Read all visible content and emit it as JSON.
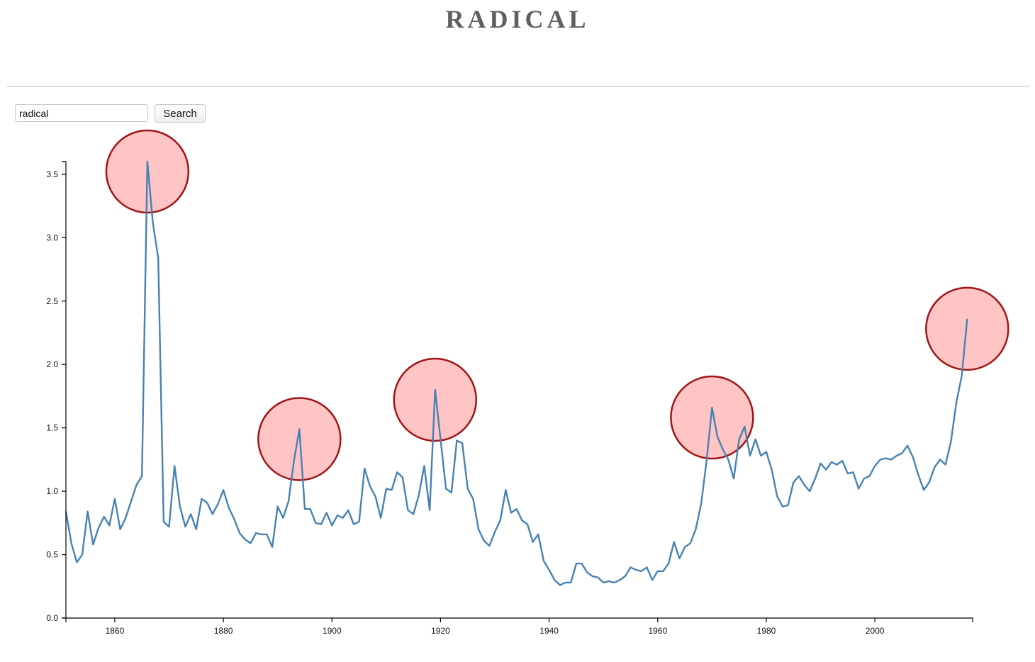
{
  "page": {
    "title": "RADICAL"
  },
  "search": {
    "value": "radical",
    "button_label": "Search"
  },
  "chart_data": {
    "type": "line",
    "title": "RADICAL",
    "xlabel": "",
    "ylabel": "",
    "xlim": [
      1851,
      2018
    ],
    "ylim": [
      0,
      3.6
    ],
    "xticks": [
      1860,
      1880,
      1900,
      1920,
      1940,
      1960,
      1980,
      2000
    ],
    "yticks": [
      0.0,
      0.5,
      1.0,
      1.5,
      2.0,
      2.5,
      3.0,
      3.5
    ],
    "grid": false,
    "legend": "none",
    "colors": {
      "line": "#4682b4",
      "highlight_fill": "#ffc4c4",
      "highlight_stroke": "#a01515",
      "axis": "#000000"
    },
    "series": [
      {
        "x": [
          1851,
          1852,
          1853,
          1854,
          1855,
          1856,
          1857,
          1858,
          1859,
          1860,
          1861,
          1862,
          1863,
          1864,
          1865,
          1866,
          1867,
          1868,
          1869,
          1870,
          1871,
          1872,
          1873,
          1874,
          1875,
          1876,
          1877,
          1878,
          1879,
          1880,
          1881,
          1882,
          1883,
          1884,
          1885,
          1886,
          1887,
          1888,
          1889,
          1890,
          1891,
          1892,
          1893,
          1894,
          1895,
          1896,
          1897,
          1898,
          1899,
          1900,
          1901,
          1902,
          1903,
          1904,
          1905,
          1906,
          1907,
          1908,
          1909,
          1910,
          1911,
          1912,
          1913,
          1914,
          1915,
          1916,
          1917,
          1918,
          1919,
          1920,
          1921,
          1922,
          1923,
          1924,
          1925,
          1926,
          1927,
          1928,
          1929,
          1930,
          1931,
          1932,
          1933,
          1934,
          1935,
          1936,
          1937,
          1938,
          1939,
          1940,
          1941,
          1942,
          1943,
          1944,
          1945,
          1946,
          1947,
          1948,
          1949,
          1950,
          1951,
          1952,
          1953,
          1954,
          1955,
          1956,
          1957,
          1958,
          1959,
          1960,
          1961,
          1962,
          1963,
          1964,
          1965,
          1966,
          1967,
          1968,
          1969,
          1970,
          1971,
          1972,
          1973,
          1974,
          1975,
          1976,
          1977,
          1978,
          1979,
          1980,
          1981,
          1982,
          1983,
          1984,
          1985,
          1986,
          1987,
          1988,
          1989,
          1990,
          1991,
          1992,
          1993,
          1994,
          1995,
          1996,
          1997,
          1998,
          1999,
          2000,
          2001,
          2002,
          2003,
          2004,
          2005,
          2006,
          2007,
          2008,
          2009,
          2010,
          2011,
          2012,
          2013,
          2014,
          2015,
          2016,
          2017
        ],
        "values": [
          0.84,
          0.59,
          0.44,
          0.5,
          0.84,
          0.58,
          0.71,
          0.8,
          0.73,
          0.94,
          0.7,
          0.79,
          0.92,
          1.05,
          1.12,
          3.6,
          3.12,
          2.84,
          0.76,
          0.72,
          1.2,
          0.88,
          0.72,
          0.82,
          0.7,
          0.94,
          0.91,
          0.82,
          0.9,
          1.01,
          0.87,
          0.78,
          0.67,
          0.62,
          0.59,
          0.67,
          0.66,
          0.66,
          0.56,
          0.88,
          0.79,
          0.92,
          1.24,
          1.49,
          0.86,
          0.86,
          0.75,
          0.74,
          0.83,
          0.73,
          0.81,
          0.79,
          0.85,
          0.74,
          0.76,
          1.18,
          1.04,
          0.96,
          0.79,
          1.02,
          1.01,
          1.15,
          1.11,
          0.85,
          0.82,
          0.97,
          1.2,
          0.85,
          1.8,
          1.41,
          1.02,
          0.99,
          1.4,
          1.38,
          1.02,
          0.94,
          0.7,
          0.61,
          0.57,
          0.68,
          0.77,
          1.01,
          0.83,
          0.86,
          0.77,
          0.74,
          0.6,
          0.66,
          0.45,
          0.38,
          0.3,
          0.26,
          0.28,
          0.28,
          0.43,
          0.43,
          0.36,
          0.33,
          0.32,
          0.28,
          0.29,
          0.28,
          0.3,
          0.33,
          0.4,
          0.38,
          0.37,
          0.4,
          0.3,
          0.37,
          0.37,
          0.43,
          0.6,
          0.47,
          0.56,
          0.59,
          0.7,
          0.9,
          1.24,
          1.66,
          1.43,
          1.33,
          1.25,
          1.1,
          1.41,
          1.51,
          1.28,
          1.41,
          1.28,
          1.31,
          1.17,
          0.96,
          0.88,
          0.89,
          1.07,
          1.12,
          1.05,
          1.0,
          1.1,
          1.22,
          1.17,
          1.23,
          1.21,
          1.24,
          1.14,
          1.15,
          1.02,
          1.1,
          1.12,
          1.2,
          1.25,
          1.26,
          1.25,
          1.28,
          1.3,
          1.36,
          1.27,
          1.13,
          1.01,
          1.07,
          1.19,
          1.25,
          1.21,
          1.39,
          1.7,
          1.91,
          2.36
        ]
      }
    ],
    "highlights": [
      {
        "x": 1866,
        "y": 3.6
      },
      {
        "x": 1894,
        "y": 1.49
      },
      {
        "x": 1919,
        "y": 1.8
      },
      {
        "x": 1970,
        "y": 1.66
      },
      {
        "x": 2017,
        "y": 2.36
      }
    ]
  }
}
